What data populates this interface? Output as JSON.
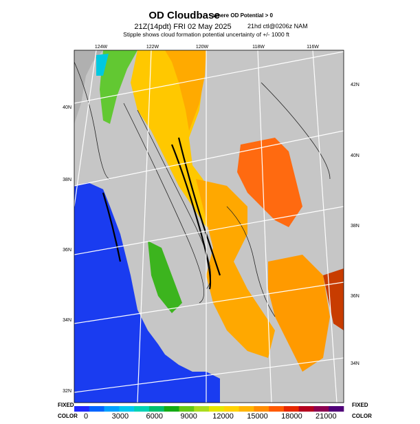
{
  "header": {
    "title": "OD Cloudbase",
    "title_note": "where OD Potential > 0",
    "valid_time": "21Z(14pdt) FRI 02 May 2025",
    "run_info": "21hd ctl@0206z NAM",
    "subtitle": "Stipple shows cloud formation potential uncertainty of +/-  1000 ft"
  },
  "map": {
    "lon_labels": [
      "124W",
      "122W",
      "120W",
      "118W",
      "116W"
    ],
    "lat_labels_left": [
      "40N",
      "38N",
      "36N",
      "34N",
      "32N"
    ],
    "lat_labels_right": [
      "42N",
      "40N",
      "38N",
      "36N",
      "34N"
    ]
  },
  "colorbar": {
    "left_top": "FIXED",
    "left_bottom": "COLOR",
    "right_top": "FIXED",
    "right_bottom": "COLOR",
    "labels": [
      "0",
      "3000",
      "6000",
      "9000",
      "12000",
      "15000",
      "18000",
      "21000"
    ]
  }
}
